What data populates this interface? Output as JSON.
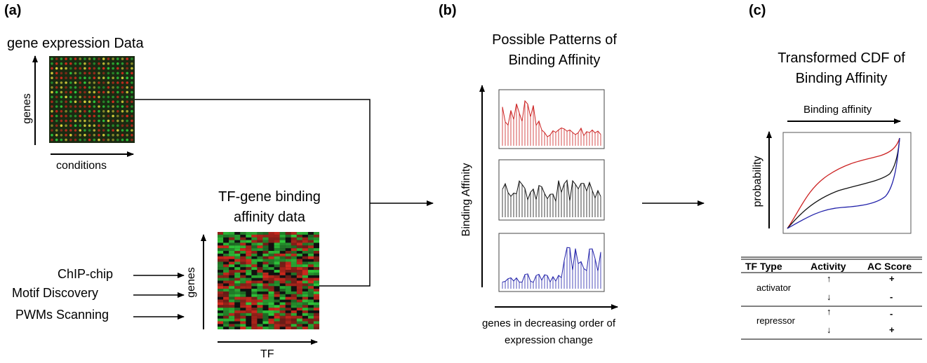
{
  "panel_a": {
    "label": "(a)",
    "expression_title": "gene expression Data",
    "genes_axis": "genes",
    "conditions_axis": "conditions",
    "binding_title_line1": "TF-gene binding",
    "binding_title_line2": "affinity data",
    "binding_genes_axis": "genes",
    "tf_axis": "TF",
    "sources": [
      "ChIP-chip",
      "Motif Discovery",
      "PWMs Scanning"
    ],
    "colors": {
      "red": "#d42a1e",
      "green": "#2fc83a",
      "yellow": "#d9d03a",
      "dark": "#1a2a12"
    }
  },
  "panel_b": {
    "label": "(b)",
    "title_line1": "Possible Patterns of",
    "title_line2": "Binding Affinity",
    "y_axis": "Binding Affinity",
    "x_axis_line1": "genes in decreasing order of",
    "x_axis_line2": "expression change",
    "pattern_colors": [
      "#cc2222",
      "#111111",
      "#2222aa"
    ]
  },
  "panel_c": {
    "label": "(c)",
    "title_line1": "Transformed CDF of",
    "title_line2": "Binding Affinity",
    "x_axis": "Binding affinity",
    "y_axis": "probability",
    "table": {
      "headers": [
        "TF Type",
        "Activity",
        "AC Score"
      ],
      "rows": [
        {
          "type": "activator",
          "activity": [
            "↑",
            "↓"
          ],
          "score": [
            "+",
            "-"
          ]
        },
        {
          "type": "repressor",
          "activity": [
            "↑",
            "↓"
          ],
          "score": [
            "-",
            "+"
          ]
        }
      ]
    }
  }
}
